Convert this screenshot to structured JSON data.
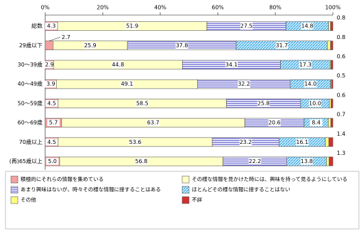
{
  "chart_data": {
    "type": "stacked-bar-horizontal",
    "categories": [
      "総数",
      "29歳以下",
      "30～39歳",
      "40～49歳",
      "50～59歳",
      "60～69歳",
      "70歳以上",
      "(再)65歳以上"
    ],
    "xlim": [
      0,
      100
    ],
    "xticks": [
      {
        "value": 0,
        "label": "0%"
      },
      {
        "value": 20,
        "label": "20%"
      },
      {
        "value": 40,
        "label": "40%"
      },
      {
        "value": 60,
        "label": "60%"
      },
      {
        "value": 80,
        "label": "80%"
      },
      {
        "value": 100,
        "label": "100%"
      }
    ],
    "series": [
      {
        "name": "積極的にそれらの情報を集めている",
        "color": "#f4a0a0",
        "values": [
          4.3,
          2.7,
          2.9,
          3.9,
          4.5,
          5.7,
          4.5,
          5.0
        ],
        "value_labels": [
          "4.3",
          "2.7",
          "2.9",
          "3.9",
          "4.5",
          "5.7",
          "4.5",
          "5.0"
        ]
      },
      {
        "name": "その様な情報を見かけた時には、興味を持って見るようにしている",
        "color": "#ffffc8",
        "values": [
          51.9,
          25.9,
          44.8,
          49.1,
          58.5,
          63.7,
          53.6,
          56.8
        ],
        "value_labels": [
          "51.9",
          "25.9",
          "44.8",
          "49.1",
          "58.5",
          "63.7",
          "53.6",
          "56.8"
        ]
      },
      {
        "name": "あまり興味はないが、時々その様な情報に接することはある",
        "color": "#3030c0",
        "hatch": "horizontal",
        "values": [
          27.5,
          37.8,
          34.1,
          32.2,
          25.8,
          20.6,
          23.2,
          22.2
        ],
        "value_labels": [
          "27.5",
          "37.8",
          "34.1",
          "32.2",
          "25.8",
          "20.6",
          "23.2",
          "22.2"
        ]
      },
      {
        "name": "ほとんどその様な情報に接することはない",
        "color": "#40a8e0",
        "hatch": "diagonal",
        "values": [
          14.8,
          31.7,
          17.3,
          14.0,
          10.0,
          8.4,
          16.1,
          13.8
        ],
        "value_labels": [
          "14.8",
          "31.7",
          "17.3",
          "14.0",
          "10.0",
          "8.4",
          "16.1",
          "13.8"
        ]
      },
      {
        "name": "その他",
        "color": "#ffff80",
        "values": [
          0.7,
          1.1,
          0.3,
          0.3,
          0.6,
          0.9,
          1.2,
          0.9
        ]
      },
      {
        "name": "不詳",
        "color": "#d03030",
        "values": [
          0.8,
          0.8,
          0.6,
          0.5,
          0.6,
          0.7,
          1.4,
          1.3
        ],
        "value_labels": [
          "0.8",
          "0.8",
          "0.6",
          "0.5",
          "0.6",
          "0.7",
          "1.4",
          "1.3"
        ]
      }
    ]
  }
}
